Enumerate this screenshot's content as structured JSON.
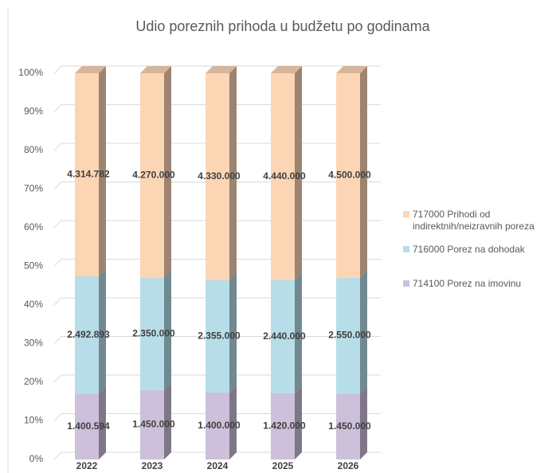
{
  "chart_data": {
    "type": "bar",
    "stacking": "percent",
    "title": "Udio poreznih prihoda u budžetu po godinama",
    "categories": [
      "2022",
      "2023",
      "2024",
      "2025",
      "2026"
    ],
    "series": [
      {
        "name": "714100 Porez na imovinu",
        "color": "#ccc0da",
        "values": [
          1400594,
          1450000,
          1400000,
          1420000,
          1450000
        ],
        "value_labels": [
          "1.400.594",
          "1.450.000",
          "1.400.000",
          "1.420.000",
          "1.450.000"
        ]
      },
      {
        "name": "716000 Porez na dohodak",
        "color": "#b7dde8",
        "values": [
          2492893,
          2350000,
          2355000,
          2440000,
          2550000
        ],
        "value_labels": [
          "2.492.893",
          "2.350.000",
          "2.355.000",
          "2.440.000",
          "2.550.000"
        ]
      },
      {
        "name": "717000 Prihodi od indirektnih/neizravnih poreza",
        "color": "#fcd5b5",
        "values": [
          4314782,
          4270000,
          4330000,
          4440000,
          4500000
        ],
        "value_labels": [
          "4.314.782",
          "4.270.000",
          "4.330.000",
          "4.440.000",
          "4.500.000"
        ]
      }
    ],
    "ylim": [
      0,
      100
    ],
    "yticks": [
      {
        "value": 0,
        "label": "0%"
      },
      {
        "value": 10,
        "label": "10%"
      },
      {
        "value": 20,
        "label": "20%"
      },
      {
        "value": 30,
        "label": "30%"
      },
      {
        "value": 40,
        "label": "40%"
      },
      {
        "value": 50,
        "label": "50%"
      },
      {
        "value": 60,
        "label": "60%"
      },
      {
        "value": 70,
        "label": "70%"
      },
      {
        "value": 80,
        "label": "80%"
      },
      {
        "value": 90,
        "label": "90%"
      },
      {
        "value": 100,
        "label": "100%"
      }
    ],
    "grid": true,
    "legend": "right"
  }
}
